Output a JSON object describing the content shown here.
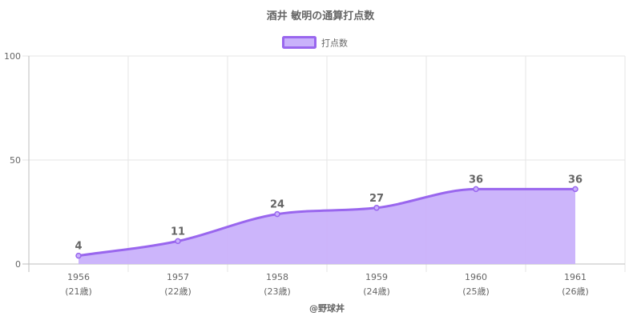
{
  "chart_data": {
    "type": "area",
    "title": "酒井 敏明の通算打点数",
    "xlabel": "@野球丼",
    "ylabel": "",
    "categories": [
      "1956",
      "1957",
      "1958",
      "1959",
      "1960",
      "1961"
    ],
    "category_sublabels": [
      "(21歳)",
      "(22歳)",
      "(23歳)",
      "(24歳)",
      "(25歳)",
      "(26歳)"
    ],
    "series": [
      {
        "name": "打点数",
        "values": [
          4,
          11,
          24,
          27,
          36,
          36
        ],
        "color": "#9966ee"
      }
    ],
    "ylim": [
      0,
      100
    ],
    "yticks": [
      "0",
      "50",
      "100"
    ],
    "grid": true,
    "legend": "top",
    "fill_color": "#c9b1fb",
    "data_labels": true
  }
}
